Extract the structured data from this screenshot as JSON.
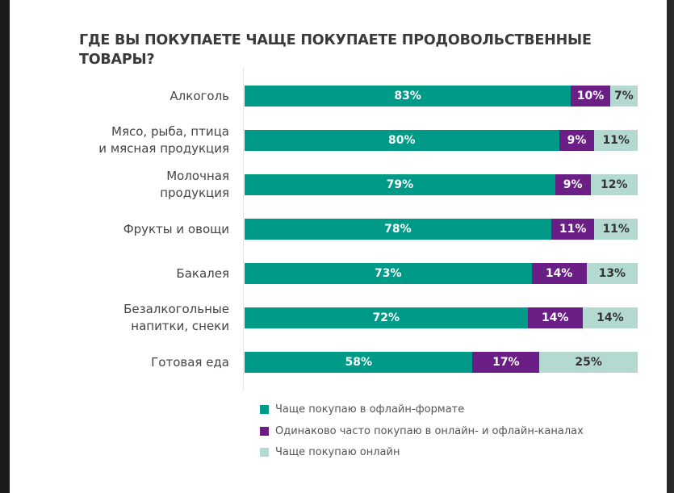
{
  "chart_data": {
    "type": "bar",
    "orientation": "horizontal",
    "stacked": true,
    "title": "ГДЕ ВЫ ПОКУПАЕТЕ ЧАЩЕ ПОКУПАЕТЕ ПРОДОВОЛЬСТВЕННЫЕ ТОВАРЫ?",
    "categories": [
      "Алкоголь",
      "Мясо, рыба, птица и мясная продукция",
      "Молочная продукция",
      "Фрукты и овощи",
      "Бакалея",
      "Безалкогольные напитки, снеки",
      "Готовая еда"
    ],
    "category_lines": [
      [
        "Алкоголь"
      ],
      [
        "Мясо, рыба, птица",
        "и мясная продукция"
      ],
      [
        "Молочная",
        "продукция"
      ],
      [
        "Фрукты и овощи"
      ],
      [
        "Бакалея"
      ],
      [
        "Безалкогольные",
        "напитки, снеки"
      ],
      [
        "Готовая еда"
      ]
    ],
    "series": [
      {
        "name": "Чаще покупаю в офлайн-формате",
        "color": "#009a88",
        "label_color": "#ffffff",
        "values": [
          83,
          80,
          79,
          78,
          73,
          72,
          58
        ]
      },
      {
        "name": "Одинаково часто покупаю в онлайн- и офлайн-каналах",
        "color": "#6b1f86",
        "label_color": "#ffffff",
        "values": [
          10,
          9,
          9,
          11,
          14,
          14,
          17
        ]
      },
      {
        "name": "Чаще покупаю онлайн",
        "color": "#b3d9d0",
        "label_color": "#333333",
        "values": [
          7,
          11,
          12,
          11,
          13,
          14,
          25
        ]
      }
    ],
    "unit": "%",
    "xlim": [
      0,
      100
    ],
    "grid": false,
    "legend_position": "bottom"
  }
}
